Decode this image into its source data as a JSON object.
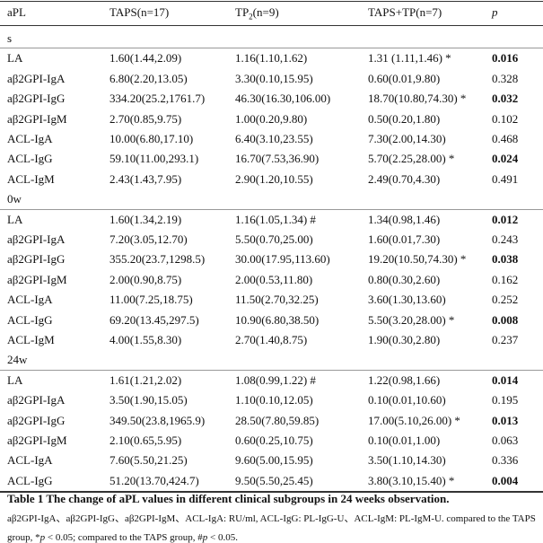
{
  "table": {
    "header": [
      "aPL",
      "TAPS(n=17)",
      {
        "main": "TP",
        "sub": "2",
        "rest": "(n=9)"
      },
      "TAPS+TP(n=7)",
      "p"
    ],
    "sections": [
      {
        "label": "s",
        "rows": [
          {
            "label": "LA",
            "cells": [
              "1.60(1.44,2.09)",
              "1.16(1.10,1.62)",
              "1.31 (1.11,1.46) *"
            ],
            "p": "0.016",
            "bold": true
          },
          {
            "label": "aβ2GPI-IgA",
            "cells": [
              "6.80(2.20,13.05)",
              "3.30(0.10,15.95)",
              "0.60(0.01,9.80)"
            ],
            "p": "0.328",
            "bold": false
          },
          {
            "label": "aβ2GPI-IgG",
            "cells": [
              "334.20(25.2,1761.7)",
              "46.30(16.30,106.00)",
              "18.70(10.80,74.30) *"
            ],
            "p": "0.032",
            "bold": true
          },
          {
            "label": "aβ2GPI-IgM",
            "cells": [
              "2.70(0.85,9.75)",
              "1.00(0.20,9.80)",
              "0.50(0.20,1.80)"
            ],
            "p": "0.102",
            "bold": false
          },
          {
            "label": "ACL-IgA",
            "cells": [
              "10.00(6.80,17.10)",
              "6.40(3.10,23.55)",
              "7.30(2.00,14.30)"
            ],
            "p": "0.468",
            "bold": false
          },
          {
            "label": "ACL-IgG",
            "cells": [
              "59.10(11.00,293.1)",
              "16.70(7.53,36.90)",
              "5.70(2.25,28.00) *"
            ],
            "p": "0.024",
            "bold": true
          },
          {
            "label": "ACL-IgM",
            "cells": [
              "2.43(1.43,7.95)",
              "2.90(1.20,10.55)",
              "2.49(0.70,4.30)"
            ],
            "p": "0.491",
            "bold": false
          }
        ]
      },
      {
        "label": "0w",
        "rows": [
          {
            "label": "LA",
            "cells": [
              "1.60(1.34,2.19)",
              "1.16(1.05,1.34) #",
              "1.34(0.98,1.46)"
            ],
            "p": "0.012",
            "bold": true
          },
          {
            "label": "aβ2GPI-IgA",
            "cells": [
              "7.20(3.05,12.70)",
              "5.50(0.70,25.00)",
              "1.60(0.01,7.30)"
            ],
            "p": "0.243",
            "bold": false
          },
          {
            "label": "aβ2GPI-IgG",
            "cells": [
              "355.20(23.7,1298.5)",
              "30.00(17.95,113.60)",
              "19.20(10.50,74.30) *"
            ],
            "p": "0.038",
            "bold": true
          },
          {
            "label": "aβ2GPI-IgM",
            "cells": [
              "2.00(0.90,8.75)",
              "2.00(0.53,11.80)",
              "0.80(0.30,2.60)"
            ],
            "p": "0.162",
            "bold": false
          },
          {
            "label": "ACL-IgA",
            "cells": [
              "11.00(7.25,18.75)",
              "11.50(2.70,32.25)",
              "3.60(1.30,13.60)"
            ],
            "p": "0.252",
            "bold": false
          },
          {
            "label": "ACL-IgG",
            "cells": [
              "69.20(13.45,297.5)",
              "10.90(6.80,38.50)",
              "5.50(3.20,28.00) *"
            ],
            "p": "0.008",
            "bold": true
          },
          {
            "label": "ACL-IgM",
            "cells": [
              "4.00(1.55,8.30)",
              "2.70(1.40,8.75)",
              "1.90(0.30,2.80)"
            ],
            "p": "0.237",
            "bold": false
          }
        ]
      },
      {
        "label": "24w",
        "rows": [
          {
            "label": "LA",
            "cells": [
              "1.61(1.21,2.02)",
              "1.08(0.99,1.22) #",
              "1.22(0.98,1.66)"
            ],
            "p": "0.014",
            "bold": true
          },
          {
            "label": "aβ2GPI-IgA",
            "cells": [
              "3.50(1.90,15.05)",
              "1.10(0.10,12.05)",
              "0.10(0.01,10.60)"
            ],
            "p": "0.195",
            "bold": false
          },
          {
            "label": "aβ2GPI-IgG",
            "cells": [
              "349.50(23.8,1965.9)",
              "28.50(7.80,59.85)",
              "17.00(5.10,26.00) *"
            ],
            "p": "0.013",
            "bold": true
          },
          {
            "label": "aβ2GPI-IgM",
            "cells": [
              "2.10(0.65,5.95)",
              "0.60(0.25,10.75)",
              "0.10(0.01,1.00)"
            ],
            "p": "0.063",
            "bold": false
          },
          {
            "label": "ACL-IgA",
            "cells": [
              "7.60(5.50,21.25)",
              "9.60(5.00,15.95)",
              "3.50(1.10,14.30)"
            ],
            "p": "0.336",
            "bold": false
          },
          {
            "label": "ACL-IgG",
            "cells": [
              "51.20(13.70,424.7)",
              "9.50(5.50,25.45)",
              "3.80(3.10,15.40) *"
            ],
            "p": "0.004",
            "bold": true
          }
        ]
      }
    ],
    "caption": "Table 1 The change of aPL values in different clinical subgroups in 24 weeks observation.",
    "footnote": [
      "aβ2GPI-IgA、aβ2GPI-IgG、aβ2GPI-IgM、ACL-IgA: RU/ml, ACL-IgG: PL-IgG-U、ACL-IgM: PL-IgM-U. compared to the TAPS group, *",
      "p",
      " < 0.05; compared to the TAPS group, #",
      "p",
      " < 0.05."
    ]
  }
}
